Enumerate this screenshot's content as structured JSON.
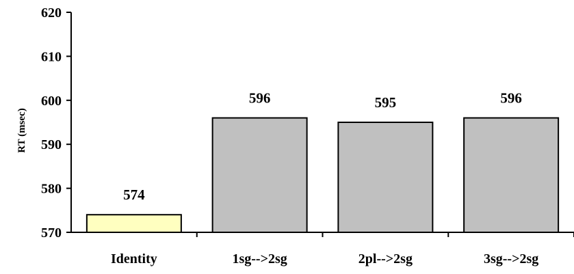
{
  "chart_data": {
    "type": "bar",
    "categories": [
      "Identity",
      "1sg-->2sg",
      "2pl-->2sg",
      "3sg-->2sg"
    ],
    "values": [
      574,
      596,
      595,
      596
    ],
    "data_labels": [
      "574",
      "596",
      "595",
      "596"
    ],
    "ylabel": "RT (msec)",
    "ylim": [
      570,
      620
    ],
    "yticks": [
      570,
      580,
      590,
      600,
      610,
      620
    ],
    "ytick_labels": [
      "570",
      "580",
      "590",
      "600",
      "610",
      "620"
    ],
    "bar_colors": [
      "#ffffc0",
      "#c0c0c0",
      "#c0c0c0",
      "#c0c0c0"
    ],
    "grid": false,
    "legend": "none"
  }
}
